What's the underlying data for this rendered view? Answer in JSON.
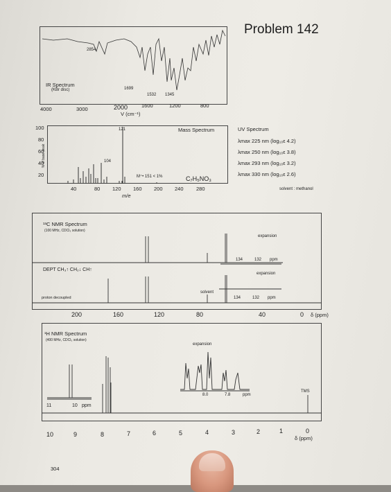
{
  "title": "Problem 142",
  "page_number": "304",
  "ir": {
    "label": "IR Spectrum",
    "sub": "(KBr disc)",
    "peaks": [
      "2854",
      "1699",
      "1532",
      "1345"
    ],
    "axis_ticks": [
      "4000",
      "3000",
      "2000",
      "1600",
      "1200",
      "800"
    ],
    "axis_label": "V (cm⁻¹)"
  },
  "mass": {
    "label": "Mass Spectrum",
    "peak_labels": [
      "121",
      "104"
    ],
    "molecular_ion": "M⁺•  151 < 1%",
    "formula": "C₇H₅NO₃",
    "y_label": "% of base peak",
    "y_ticks": [
      "100",
      "80",
      "60",
      "40",
      "20"
    ],
    "x_ticks": [
      "40",
      "80",
      "120",
      "160",
      "200",
      "240",
      "280"
    ],
    "x_label": "m/e"
  },
  "uv": {
    "label": "UV Spectrum",
    "lines": [
      "λmax 225 nm (log₁₀ε 4.2)",
      "λmax 250 nm (log₁₀ε 3.8)",
      "λmax 293 nm (log₁₀ε 3.2)",
      "λmax 330 nm (log₁₀ε 2.6)"
    ],
    "solvent": "solvent : methanol"
  },
  "c13": {
    "label": "¹³C NMR Spectrum",
    "sub": "(100 MHz, CDCl₃ solution)",
    "dept": "DEPT  CH₃↑  CH₂↓  CH↑",
    "proton_decoupled": "proton decoupled",
    "solvent": "solvent",
    "expansion": "expansion",
    "exp_ticks": [
      "134",
      "132",
      "ppm"
    ],
    "axis_ticks": [
      "200",
      "160",
      "120",
      "80",
      "40",
      "0"
    ],
    "axis_unit": "δ (ppm)"
  },
  "h1": {
    "label": "¹H NMR Spectrum",
    "sub": "(400 MHz, CDCl₃ solution)",
    "expansion": "expansion",
    "exp_ticks": [
      "8.0",
      "7.8",
      "ppm"
    ],
    "inset_ticks": [
      "11",
      "10",
      "ppm"
    ],
    "tms": "TMS",
    "axis_ticks": [
      "10",
      "9",
      "8",
      "7",
      "6",
      "5",
      "4",
      "3",
      "2",
      "1",
      "0"
    ],
    "axis_unit": "δ (ppm)"
  }
}
